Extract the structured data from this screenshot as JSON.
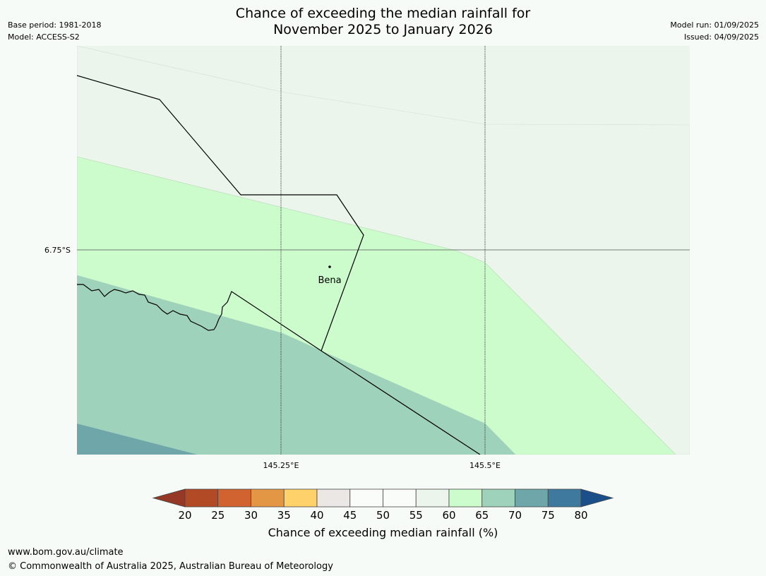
{
  "header": {
    "title_line1": "Chance of exceeding the median rainfall for",
    "title_line2": "November 2025 to January 2026",
    "base_period": "Base period: 1981-2018",
    "model": "Model: ACCESS-S2",
    "model_run": "Model run: 01/09/2025",
    "issued": "Issued: 04/09/2025"
  },
  "map": {
    "lat_label": "6.75°S",
    "lon_labels": [
      "145.25°E",
      "145.5°E"
    ],
    "place": "Bena",
    "zone_colors": {
      "band_60_65": "#ebf5eb",
      "band_65_70": "#ccfccc",
      "band_70_75": "#9ed2ba",
      "band_75_80": "#6fa6a9"
    }
  },
  "colorbar": {
    "ticks": [
      "20",
      "25",
      "30",
      "35",
      "40",
      "45",
      "50",
      "55",
      "60",
      "65",
      "70",
      "75",
      "80"
    ],
    "colors": [
      "#b34a26",
      "#d06330",
      "#e39744",
      "#fed16a",
      "#ebe7e5",
      "#fafcfa",
      "#fafcfa",
      "#ebf5eb",
      "#ccfccc",
      "#9ed2ba",
      "#6fa6a9",
      "#3f7a9e"
    ],
    "under_color": "#953926",
    "over_color": "#1b4f8a",
    "label": "Chance of exceeding median rainfall (%)"
  },
  "footer": {
    "url": "www.bom.gov.au/climate",
    "copyright": "© Commonwealth of Australia 2025, Australian Bureau of Meteorology"
  }
}
